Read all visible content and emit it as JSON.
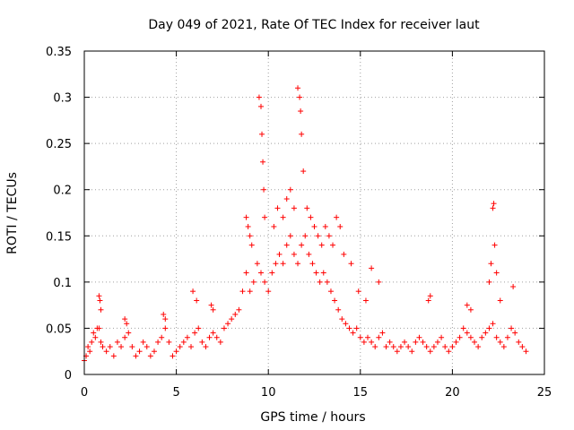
{
  "chart_data": {
    "type": "scatter",
    "title": "Day 049 of 2021, Rate Of TEC Index for receiver laut",
    "xlabel": "GPS time / hours",
    "ylabel": "ROTI / TECUs",
    "xlim": [
      0,
      25
    ],
    "ylim": [
      0,
      0.35
    ],
    "xticks": [
      0,
      5,
      10,
      15,
      20,
      25
    ],
    "xtick_labels": [
      "0",
      "5",
      "10",
      "15",
      "20",
      "25"
    ],
    "yticks": [
      0,
      0.05,
      0.1,
      0.15,
      0.2,
      0.25,
      0.3,
      0.35
    ],
    "ytick_labels": [
      "0",
      "0.05",
      "0.1",
      "0.15",
      "0.2",
      "0.25",
      "0.3",
      "0.35"
    ],
    "grid": true,
    "marker": "+",
    "color": "#ff0000",
    "series": [
      {
        "name": "ROTI",
        "x": [
          0.0,
          0.1,
          0.2,
          0.3,
          0.4,
          0.5,
          0.6,
          0.7,
          0.8,
          0.9,
          1.0,
          1.2,
          1.4,
          1.6,
          1.8,
          2.0,
          2.2,
          2.4,
          2.6,
          2.8,
          3.0,
          3.2,
          3.4,
          3.6,
          3.8,
          4.0,
          4.2,
          4.4,
          4.6,
          4.8,
          5.0,
          5.2,
          5.4,
          5.6,
          5.8,
          6.0,
          6.2,
          6.4,
          6.6,
          6.8,
          7.0,
          7.2,
          7.4,
          7.6,
          7.8,
          8.0,
          8.2,
          8.4,
          8.6,
          8.8,
          9.0,
          9.2,
          9.4,
          9.6,
          9.8,
          10.0,
          10.2,
          10.4,
          10.6,
          10.8,
          11.0,
          11.2,
          11.4,
          11.6,
          11.8,
          12.0,
          12.2,
          12.4,
          12.6,
          12.8,
          13.0,
          13.2,
          13.4,
          13.6,
          13.8,
          14.0,
          14.2,
          14.4,
          14.6,
          14.8,
          15.0,
          15.2,
          15.4,
          15.6,
          15.8,
          16.0,
          16.2,
          16.4,
          16.6,
          16.8,
          17.0,
          17.2,
          17.4,
          17.6,
          17.8,
          18.0,
          18.2,
          18.4,
          18.6,
          18.8,
          19.0,
          19.2,
          19.4,
          19.6,
          19.8,
          20.0,
          20.2,
          20.4,
          20.6,
          20.8,
          21.0,
          21.2,
          21.4,
          21.6,
          21.8,
          22.0,
          22.2,
          22.4,
          22.6,
          22.8,
          23.0,
          23.2,
          23.4,
          23.6,
          23.8,
          24.0,
          0.8,
          0.85,
          0.9,
          2.2,
          2.3,
          4.3,
          4.4,
          5.9,
          6.1,
          6.9,
          7.0,
          8.8,
          8.9,
          9.0,
          9.1,
          9.5,
          9.6,
          9.65,
          9.7,
          9.75,
          9.8,
          10.3,
          10.5,
          10.8,
          11.0,
          11.2,
          11.4,
          11.6,
          11.7,
          11.75,
          11.8,
          11.9,
          12.1,
          12.3,
          12.5,
          12.7,
          12.9,
          13.1,
          13.3,
          13.5,
          13.7,
          13.9,
          14.1,
          14.5,
          14.9,
          15.3,
          15.6,
          16.0,
          18.7,
          18.8,
          20.8,
          21.0,
          22.0,
          22.1,
          22.2,
          22.25,
          22.3,
          22.4,
          22.6,
          23.3
        ],
        "y": [
          0.015,
          0.02,
          0.03,
          0.025,
          0.035,
          0.045,
          0.04,
          0.05,
          0.05,
          0.035,
          0.03,
          0.025,
          0.03,
          0.02,
          0.035,
          0.03,
          0.04,
          0.045,
          0.03,
          0.02,
          0.025,
          0.035,
          0.03,
          0.02,
          0.025,
          0.035,
          0.04,
          0.05,
          0.035,
          0.02,
          0.025,
          0.03,
          0.035,
          0.04,
          0.03,
          0.045,
          0.05,
          0.035,
          0.03,
          0.04,
          0.045,
          0.04,
          0.035,
          0.05,
          0.055,
          0.06,
          0.065,
          0.07,
          0.09,
          0.11,
          0.09,
          0.1,
          0.12,
          0.11,
          0.1,
          0.09,
          0.11,
          0.12,
          0.13,
          0.12,
          0.14,
          0.15,
          0.13,
          0.12,
          0.14,
          0.15,
          0.13,
          0.12,
          0.11,
          0.1,
          0.11,
          0.1,
          0.09,
          0.08,
          0.07,
          0.06,
          0.055,
          0.05,
          0.045,
          0.05,
          0.04,
          0.035,
          0.04,
          0.035,
          0.03,
          0.04,
          0.045,
          0.03,
          0.035,
          0.03,
          0.025,
          0.03,
          0.035,
          0.03,
          0.025,
          0.035,
          0.04,
          0.035,
          0.03,
          0.025,
          0.03,
          0.035,
          0.04,
          0.03,
          0.025,
          0.03,
          0.035,
          0.04,
          0.05,
          0.045,
          0.04,
          0.035,
          0.03,
          0.04,
          0.045,
          0.05,
          0.055,
          0.04,
          0.035,
          0.03,
          0.04,
          0.05,
          0.045,
          0.035,
          0.03,
          0.025,
          0.085,
          0.08,
          0.07,
          0.06,
          0.055,
          0.065,
          0.06,
          0.09,
          0.08,
          0.075,
          0.07,
          0.17,
          0.16,
          0.15,
          0.14,
          0.3,
          0.29,
          0.26,
          0.23,
          0.2,
          0.17,
          0.16,
          0.18,
          0.17,
          0.19,
          0.2,
          0.18,
          0.31,
          0.3,
          0.285,
          0.26,
          0.22,
          0.18,
          0.17,
          0.16,
          0.15,
          0.14,
          0.16,
          0.15,
          0.14,
          0.17,
          0.16,
          0.13,
          0.12,
          0.09,
          0.08,
          0.115,
          0.1,
          0.08,
          0.085,
          0.075,
          0.07,
          0.1,
          0.12,
          0.18,
          0.185,
          0.14,
          0.11,
          0.08,
          0.095
        ]
      }
    ]
  }
}
